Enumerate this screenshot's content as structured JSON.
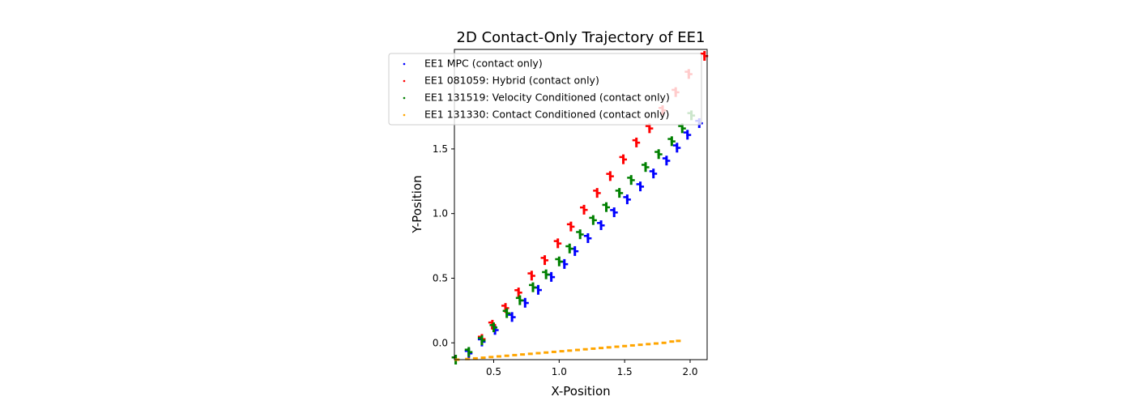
{
  "chart_data": {
    "type": "scatter",
    "title": "2D Contact-Only Trajectory of EE1",
    "xlabel": "X-Position",
    "ylabel": "Y-Position",
    "xlim": [
      0.2,
      2.13
    ],
    "ylim": [
      -0.13,
      2.27
    ],
    "xticks": [
      0.5,
      1.0,
      1.5,
      2.0
    ],
    "xtick_labels": [
      "0.5",
      "1.0",
      "1.5",
      "2.0"
    ],
    "yticks": [
      0.0,
      0.5,
      1.0,
      1.5
    ],
    "ytick_labels": [
      "0.0",
      "0.5",
      "1.0",
      "1.5"
    ],
    "grid": false,
    "legend_position": "top-right",
    "series": [
      {
        "name": "EE1 MPC (contact only)",
        "color": "#0000ff",
        "points": [
          [
            0.31,
            -0.08
          ],
          [
            0.41,
            0.01
          ],
          [
            0.51,
            0.1
          ],
          [
            0.64,
            0.2
          ],
          [
            0.74,
            0.31
          ],
          [
            0.84,
            0.41
          ],
          [
            0.94,
            0.51
          ],
          [
            1.04,
            0.61
          ],
          [
            1.12,
            0.71
          ],
          [
            1.22,
            0.81
          ],
          [
            1.32,
            0.91
          ],
          [
            1.42,
            1.01
          ],
          [
            1.52,
            1.11
          ],
          [
            1.62,
            1.21
          ],
          [
            1.72,
            1.31
          ],
          [
            1.82,
            1.41
          ],
          [
            1.9,
            1.51
          ],
          [
            1.98,
            1.61
          ],
          [
            2.07,
            1.7
          ]
        ]
      },
      {
        "name": "EE1 081059: Hybrid (contact only)",
        "color": "#ff0000",
        "points": [
          [
            0.41,
            0.03
          ],
          [
            0.49,
            0.14
          ],
          [
            0.59,
            0.27
          ],
          [
            0.69,
            0.39
          ],
          [
            0.79,
            0.52
          ],
          [
            0.89,
            0.64
          ],
          [
            0.99,
            0.77
          ],
          [
            1.09,
            0.9
          ],
          [
            1.19,
            1.03
          ],
          [
            1.29,
            1.16
          ],
          [
            1.39,
            1.29
          ],
          [
            1.49,
            1.42
          ],
          [
            1.59,
            1.55
          ],
          [
            1.69,
            1.66
          ],
          [
            1.79,
            1.8
          ],
          [
            1.89,
            1.94
          ],
          [
            1.99,
            2.08
          ],
          [
            2.11,
            2.22
          ]
        ]
      },
      {
        "name": "EE1 131519: Velocity Conditioned (contact only)",
        "color": "#008000",
        "points": [
          [
            0.21,
            -0.13
          ],
          [
            0.31,
            -0.07
          ],
          [
            0.41,
            0.02
          ],
          [
            0.5,
            0.12
          ],
          [
            0.6,
            0.23
          ],
          [
            0.7,
            0.33
          ],
          [
            0.8,
            0.43
          ],
          [
            0.9,
            0.53
          ],
          [
            1.0,
            0.63
          ],
          [
            1.08,
            0.73
          ],
          [
            1.16,
            0.84
          ],
          [
            1.26,
            0.95
          ],
          [
            1.36,
            1.05
          ],
          [
            1.46,
            1.16
          ],
          [
            1.55,
            1.26
          ],
          [
            1.66,
            1.36
          ],
          [
            1.76,
            1.46
          ],
          [
            1.86,
            1.56
          ],
          [
            1.94,
            1.66
          ],
          [
            2.01,
            1.76
          ]
        ]
      },
      {
        "name": "EE1 131330: Contact Conditioned (contact only)",
        "color": "#ffa500",
        "points": [
          [
            0.22,
            -0.13
          ],
          [
            0.3,
            -0.125
          ],
          [
            0.36,
            -0.12
          ],
          [
            0.42,
            -0.115
          ],
          [
            0.48,
            -0.11
          ],
          [
            0.54,
            -0.105
          ],
          [
            0.6,
            -0.1
          ],
          [
            0.66,
            -0.095
          ],
          [
            0.72,
            -0.09
          ],
          [
            0.78,
            -0.085
          ],
          [
            0.84,
            -0.08
          ],
          [
            0.9,
            -0.075
          ],
          [
            0.96,
            -0.07
          ],
          [
            1.02,
            -0.065
          ],
          [
            1.08,
            -0.06
          ],
          [
            1.14,
            -0.055
          ],
          [
            1.2,
            -0.05
          ],
          [
            1.26,
            -0.045
          ],
          [
            1.32,
            -0.04
          ],
          [
            1.38,
            -0.035
          ],
          [
            1.44,
            -0.03
          ],
          [
            1.5,
            -0.025
          ],
          [
            1.56,
            -0.02
          ],
          [
            1.62,
            -0.015
          ],
          [
            1.68,
            -0.01
          ],
          [
            1.74,
            -0.005
          ],
          [
            1.8,
            0.0
          ],
          [
            1.86,
            0.01
          ],
          [
            1.91,
            0.015
          ]
        ]
      }
    ]
  }
}
